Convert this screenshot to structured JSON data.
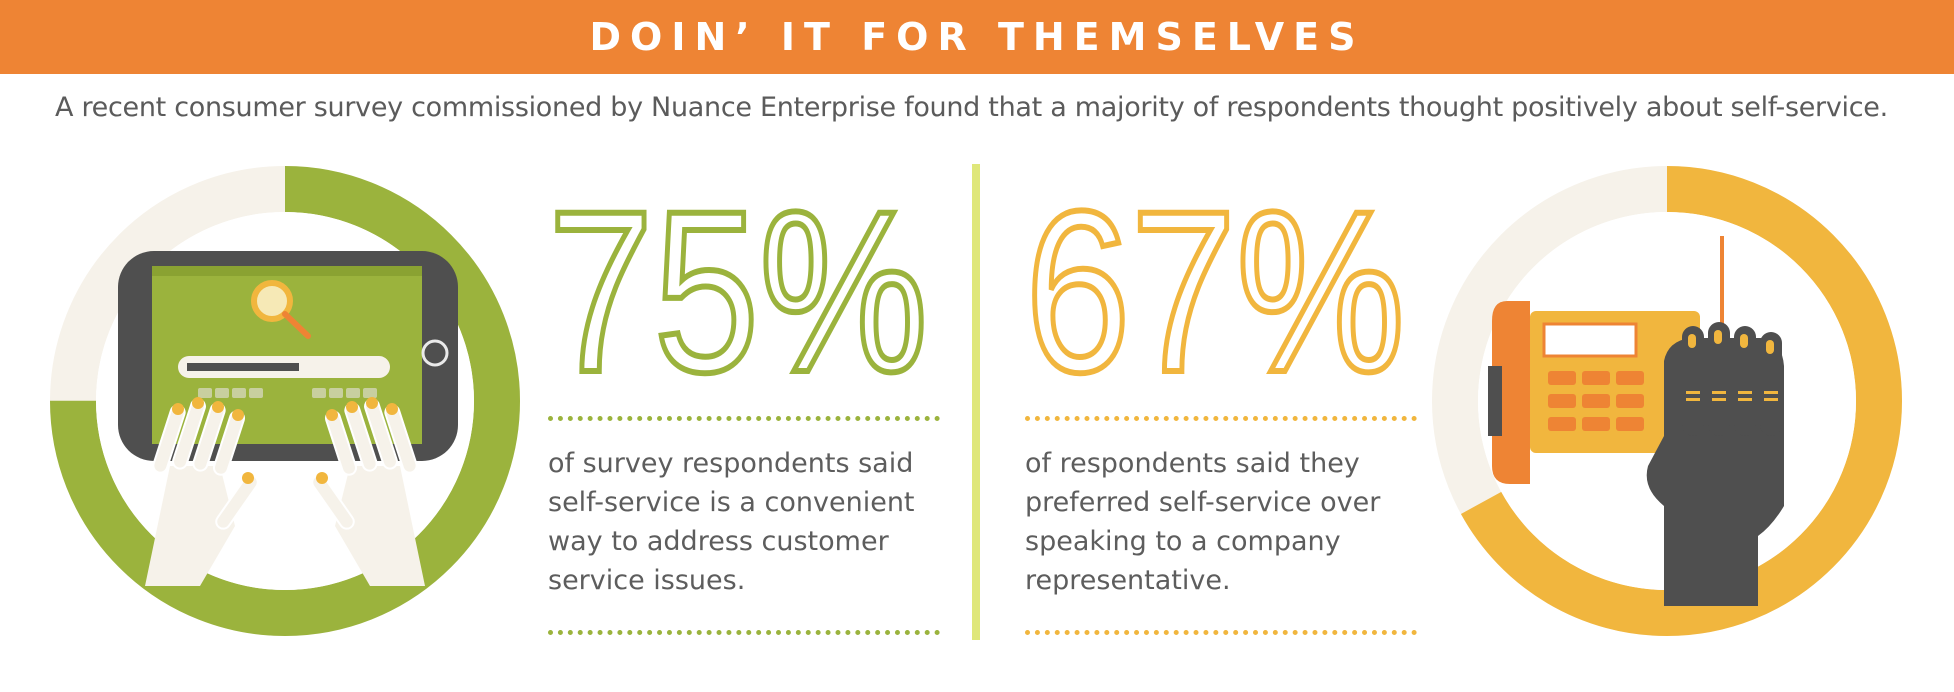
{
  "header": {
    "title": "DOIN’ IT FOR THEMSELVES"
  },
  "intro": {
    "text": "A recent consumer survey commissioned by Nuance Enterprise found that a majority of respondents thought positively about self-service."
  },
  "stats": [
    {
      "value": "75%",
      "fraction": 0.75,
      "caption": "of survey respondents said self-service is a convenient way to address customer service issues."
    },
    {
      "value": "67%",
      "fraction": 0.67,
      "caption": "of respondents said they preferred self-service over speaking to a company representative."
    }
  ],
  "colors": {
    "banner": "#ee8434",
    "green": "#9bb33d",
    "yellow": "#f1b63e",
    "orange": "#ee8434",
    "cream": "#f6f2ea",
    "dark": "#4f4f4f",
    "divider": "#dfe77a",
    "text": "#5b5b5b"
  },
  "icons": {
    "left": "tablet-typing-hands-icon",
    "right": "phone-dialing-hand-icon"
  }
}
